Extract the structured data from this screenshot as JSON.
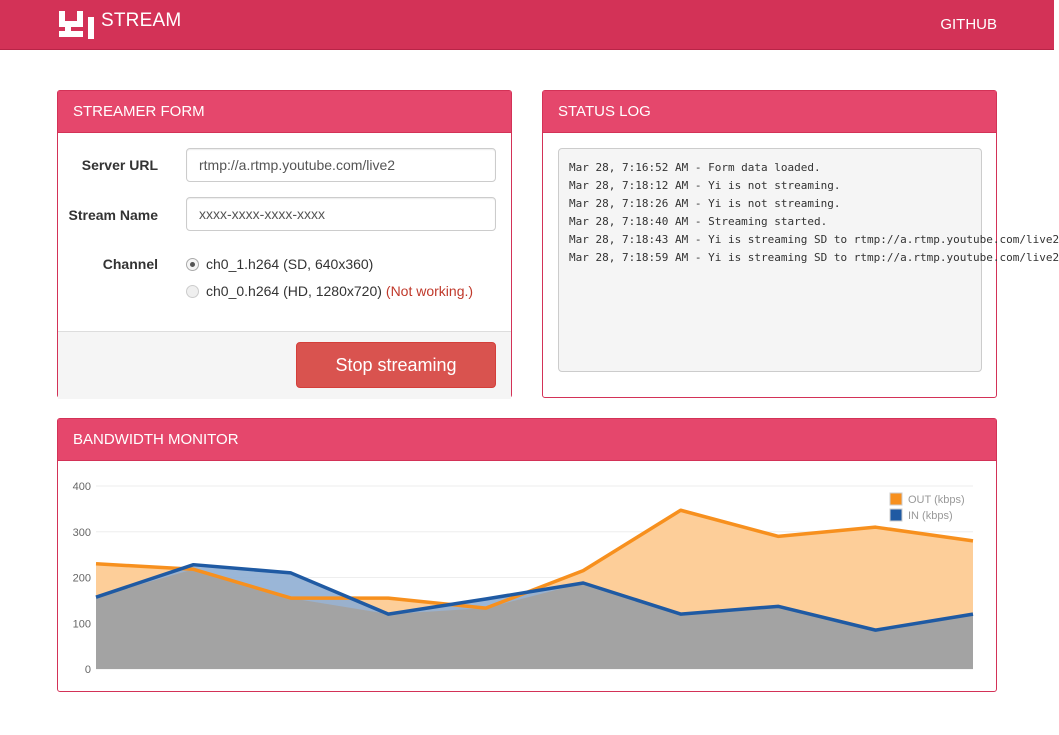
{
  "navbar": {
    "brand": "STREAM",
    "link": "GITHUB"
  },
  "streamer_form": {
    "title": "STREAMER FORM",
    "server_url_label": "Server URL",
    "server_url_value": "rtmp://a.rtmp.youtube.com/live2",
    "stream_name_label": "Stream Name",
    "stream_name_value": "xxxx-xxxx-xxxx-xxxx",
    "channel_label": "Channel",
    "channel_options": [
      {
        "label": "ch0_1.h264 (SD, 640x360)",
        "note": "",
        "checked": true
      },
      {
        "label": "ch0_0.h264 (HD, 1280x720)",
        "note": "(Not working.)",
        "checked": false
      }
    ],
    "button_label": "Stop streaming"
  },
  "status_log": {
    "title": "STATUS LOG",
    "lines": [
      "Mar 28, 7:16:52 AM - Form data loaded.",
      "Mar 28, 7:18:12 AM - Yi is not streaming.",
      "Mar 28, 7:18:26 AM - Yi is not streaming.",
      "Mar 28, 7:18:40 AM - Streaming started.",
      "Mar 28, 7:18:43 AM - Yi is streaming SD to rtmp://a.rtmp.youtube.com/live2",
      "Mar 28, 7:18:59 AM - Yi is streaming SD to rtmp://a.rtmp.youtube.com/live2"
    ]
  },
  "bandwidth_monitor": {
    "title": "BANDWIDTH MONITOR"
  },
  "chart_data": {
    "type": "area",
    "ylim": [
      0,
      400
    ],
    "yticks": [
      0,
      100,
      200,
      300,
      400
    ],
    "grid": true,
    "legend_position": "top-right",
    "series": [
      {
        "name": "OUT (kbps)",
        "color": "#f7901e",
        "fill": "#fdcb94",
        "values": [
          230,
          218,
          155,
          155,
          133,
          215,
          347,
          290,
          310,
          280
        ]
      },
      {
        "name": "IN (kbps)",
        "color": "#1f5aa3",
        "fill": "#8faed3",
        "values": [
          157,
          228,
          210,
          120,
          153,
          188,
          120,
          137,
          85,
          120
        ]
      }
    ]
  }
}
